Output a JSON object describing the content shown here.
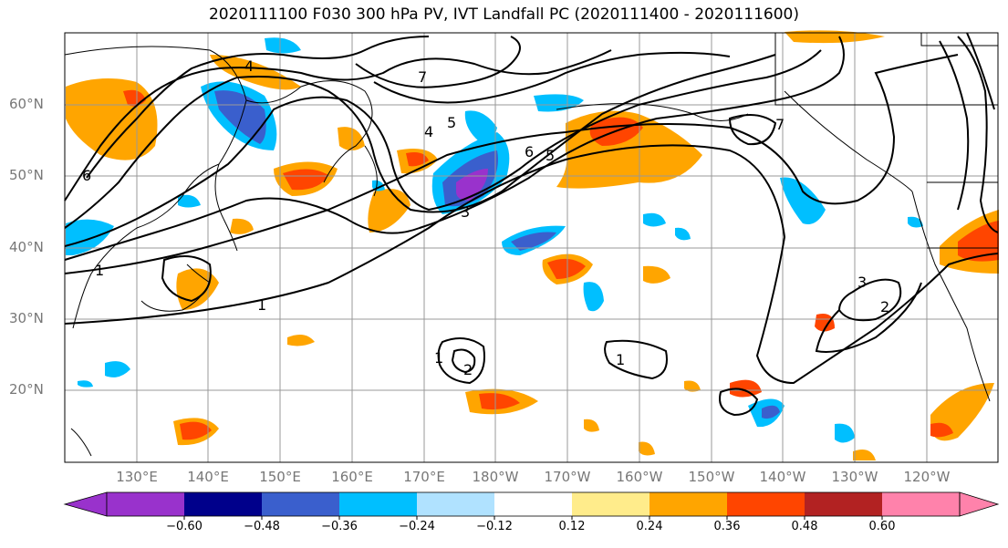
{
  "title": "2020111100 F030 300 hPa PV, IVT Landfall PC (2020111400 - 2020111600)",
  "lat_labels": [
    "60°N",
    "50°N",
    "40°N",
    "30°N",
    "20°N"
  ],
  "lon_labels": [
    "130°E",
    "140°E",
    "150°E",
    "160°E",
    "170°E",
    "180°W",
    "170°W",
    "160°W",
    "150°W",
    "140°W",
    "130°W",
    "120°W"
  ],
  "colorbar": {
    "tick_labels": [
      "−0.60",
      "−0.48",
      "−0.36",
      "−0.24",
      "−0.12",
      "0.12",
      "0.24",
      "0.36",
      "0.48",
      "0.60"
    ],
    "colors": [
      "#9932cc",
      "#00008b",
      "#3a5fcd",
      "#00bfff",
      "#b0e2ff",
      "#ffffff",
      "#ffec8b",
      "#ffa500",
      "#ff4500",
      "#b22222",
      "#ff82ab"
    ]
  },
  "contour_labels": [
    "1",
    "1",
    "1",
    "1",
    "2",
    "2",
    "3",
    "3",
    "4",
    "4",
    "5",
    "5",
    "6",
    "6",
    "7",
    "7"
  ]
}
